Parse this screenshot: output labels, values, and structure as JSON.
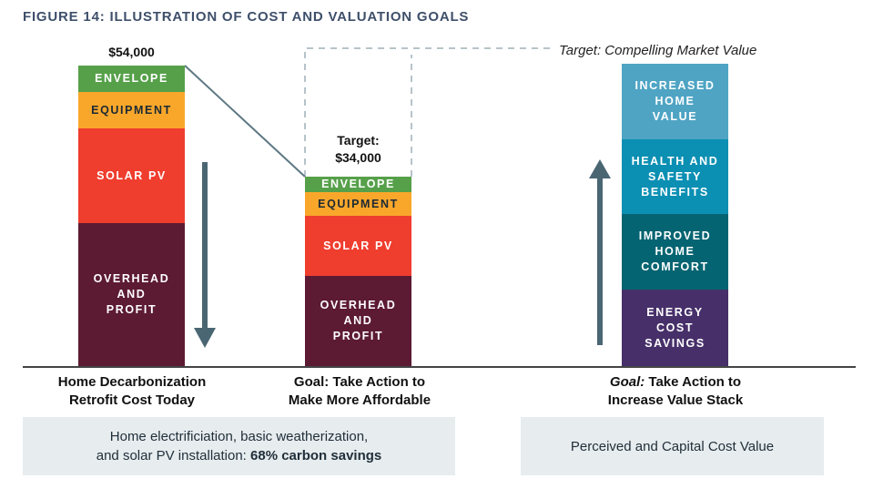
{
  "title": "FIGURE 14: ILLUSTRATION OF COST AND VALUATION GOALS",
  "colors": {
    "envelope": "#56a04a",
    "equipment": "#f9a72b",
    "solar_pv": "#ef3d2e",
    "overhead": "#5c1a33",
    "increased_home_value": "#4fa4c4",
    "health_safety": "#0b8fb3",
    "improved_comfort": "#056471",
    "energy_savings": "#47306a",
    "arrow": "#4a6673",
    "caption_box": "#e7ecef"
  },
  "bar_today": {
    "amount": "$54,000",
    "segments": [
      "ENVELOPE",
      "EQUIPMENT",
      "SOLAR PV",
      "OVERHEAD AND PROFIT"
    ],
    "caption_line1": "Home Decarbonization",
    "caption_line2": "Retrofit Cost Today",
    "arrow": "down-arrow-icon"
  },
  "bar_goal": {
    "amount_label": "Target:",
    "amount": "$34,000",
    "segments": [
      "ENVELOPE",
      "EQUIPMENT",
      "SOLAR PV",
      "OVERHEAD AND PROFIT"
    ],
    "caption_line1": "Goal: Take Action to",
    "caption_line2": "Make More Affordable"
  },
  "bar_value": {
    "target_label": "Target: Compelling Market Value",
    "segments": [
      "INCREASED HOME VALUE",
      "HEALTH AND SAFETY BENEFITS",
      "IMPROVED HOME COMFORT",
      "ENERGY COST SAVINGS"
    ],
    "caption_italic": "Goal:",
    "caption_line1_rest": " Take Action to",
    "caption_line2": "Increase Value Stack",
    "arrow": "up-arrow-icon"
  },
  "left_box": {
    "line1": "Home electrificiation, basic weatherization,",
    "line2_prefix": "and solar PV installation: ",
    "line2_bold": "68% carbon savings"
  },
  "right_box": {
    "text": "Perceived and Capital Cost Value"
  }
}
